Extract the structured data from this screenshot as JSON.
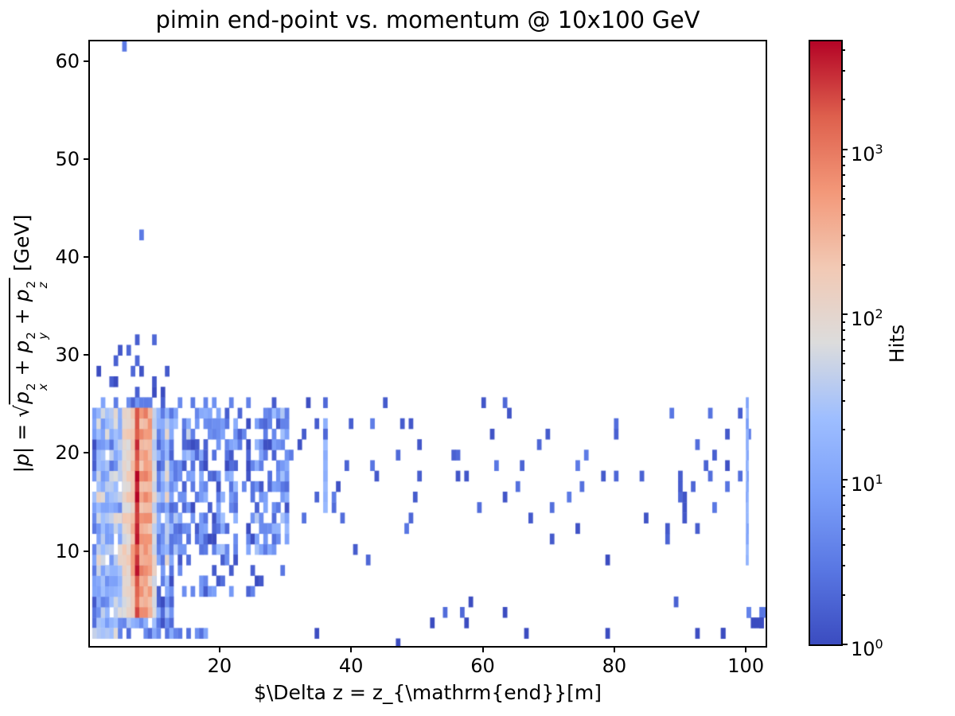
{
  "chart_data": {
    "type": "heatmap",
    "title": "pimin end-point vs. momentum @ 10x100 GeV",
    "xlabel": "$\\Delta z = z_{\\mathrm{end}}[m]",
    "ylabel": {
      "lhs_open": "|",
      "lhs_var": "p",
      "lhs_close": "| = ",
      "sqrt": "√",
      "terms": [
        {
          "base": "p",
          "sup": "2",
          "sub": "x"
        },
        {
          "base": "p",
          "sup": "2",
          "sub": "y"
        },
        {
          "base": "p",
          "sup": "2",
          "sub": "z"
        }
      ],
      "joiner": " + ",
      "suffix": " [GeV]"
    },
    "colorbar": {
      "label": "Hits",
      "base": "10",
      "tick_exponents": [
        0,
        1,
        2,
        3
      ]
    },
    "scale": "log",
    "vmin": 1,
    "vmax": 4500,
    "xlim": [
      0.3,
      103
    ],
    "ylim": [
      0.3,
      62
    ],
    "xticks": [
      20,
      40,
      60,
      80,
      100
    ],
    "yticks": [
      10,
      20,
      30,
      40,
      50,
      60
    ],
    "grid": false,
    "bin_w": 0.65,
    "bin_h": 1.07,
    "colormap": "coolwarm",
    "colormap_stops": [
      [
        0.0,
        "#3b4cc0"
      ],
      [
        0.125,
        "#5977e3"
      ],
      [
        0.25,
        "#7b9ff9"
      ],
      [
        0.375,
        "#9ebeff"
      ],
      [
        0.5,
        "#dcdcdc"
      ],
      [
        0.625,
        "#f2c9b4"
      ],
      [
        0.75,
        "#f39879"
      ],
      [
        0.875,
        "#de604d"
      ],
      [
        1.0,
        "#b40426"
      ]
    ],
    "axis_color": "#000000",
    "seed": 20,
    "regions": [
      {
        "name": "core-left",
        "x0": 0.3,
        "x1": 13,
        "y0": 1.6,
        "y1": 24.6,
        "fill": 0.94,
        "lmin": 0.5,
        "lmax": 1.6,
        "colvar": 0.45,
        "rowvar": 0.3
      },
      {
        "name": "core-top-fade",
        "x0": 0.3,
        "x1": 12,
        "y0": 24.6,
        "y1": 25.6,
        "fill": 0.45,
        "lmin": 0.2,
        "lmax": 1.0
      },
      {
        "name": "mid-band-a",
        "x0": 13,
        "x1": 22.4,
        "y0": 8.6,
        "y1": 24.6,
        "fill": 0.62,
        "lmin": 0.15,
        "lmax": 1.3,
        "colvar": 0.3,
        "rowvar": 0.25
      },
      {
        "name": "mid-band-gap",
        "x0": 22.4,
        "x1": 23.6,
        "y0": 8.6,
        "y1": 24.6,
        "fill": 0.1,
        "lmin": 0,
        "lmax": 0.7
      },
      {
        "name": "mid-band-b",
        "x0": 23.6,
        "x1": 30,
        "y0": 8.6,
        "y1": 24.6,
        "fill": 0.62,
        "lmin": 0.15,
        "lmax": 1.3,
        "colvar": 0.3,
        "rowvar": 0.25
      },
      {
        "name": "mid-top-fade",
        "x0": 13,
        "x1": 30,
        "y0": 24.6,
        "y1": 25.3,
        "fill": 0.35,
        "lmin": 0.1,
        "lmax": 0.9
      },
      {
        "name": "low-mid",
        "x0": 13,
        "x1": 22,
        "y0": 4.3,
        "y1": 8.6,
        "fill": 0.3,
        "lmin": 0.1,
        "lmax": 0.95
      },
      {
        "name": "low-mid-sparse",
        "x0": 22,
        "x1": 30,
        "y0": 4.3,
        "y1": 8.6,
        "fill": 0.08,
        "lmin": 0,
        "lmax": 0.6
      },
      {
        "name": "sparse-wide",
        "x0": 30,
        "x1": 103,
        "y0": 9.6,
        "y1": 22.6,
        "fill": 0.048,
        "lmin": 0,
        "lmax": 0.55
      },
      {
        "name": "sparse-top",
        "x0": 30,
        "x1": 70,
        "y0": 22.6,
        "y1": 25.3,
        "fill": 0.02,
        "lmin": 0,
        "lmax": 0.4
      },
      {
        "name": "sparse-bottom",
        "x0": 12,
        "x1": 103,
        "y0": 0.8,
        "y1": 4.3,
        "fill": 0.016,
        "lmin": 0,
        "lmax": 0.45
      },
      {
        "name": "sparse-low-wide",
        "x0": 30,
        "x1": 103,
        "y0": 4.3,
        "y1": 9.6,
        "fill": 0.008,
        "lmin": 0,
        "lmax": 0.3
      },
      {
        "name": "upper-sparse",
        "x0": 2.6,
        "x1": 12,
        "y0": 25.6,
        "y1": 31.2,
        "fill": 0.13,
        "lmin": 0,
        "lmax": 0.5
      },
      {
        "name": "bottom-row-hot",
        "x0": 0.3,
        "x1": 4.2,
        "y0": 0.3,
        "y1": 1.6,
        "fill": 0.95,
        "lmin": 1.2,
        "lmax": 2.3,
        "colvar": 0.3
      },
      {
        "name": "bottom-row",
        "x0": 4.2,
        "x1": 18,
        "y0": 0.3,
        "y1": 1.6,
        "fill": 0.5,
        "lmin": 0.3,
        "lmax": 1.3
      },
      {
        "name": "streak-36",
        "x0": 35.4,
        "x1": 36.4,
        "y0": 13.4,
        "y1": 22.6,
        "fill": 0.9,
        "lmin": 0.9,
        "lmax": 1.5
      },
      {
        "name": "line-100",
        "x0": 99.95,
        "x1": 100.35,
        "y0": 7.6,
        "y1": 25.2,
        "fill": 0.95,
        "lmin": 0.85,
        "lmax": 1.4,
        "bw": 0.2
      },
      {
        "name": "bottom-right",
        "x0": 99.8,
        "x1": 103,
        "y0": 1.4,
        "y1": 4.3,
        "fill": 0.28,
        "lmin": 0,
        "lmax": 0.7
      },
      {
        "name": "right-mid-extra",
        "x0": 88,
        "x1": 99,
        "y0": 13,
        "y1": 24,
        "fill": 0.05,
        "lmin": 0,
        "lmax": 0.5
      }
    ],
    "stripes": [
      {
        "name": "pale-left",
        "x0": 5.1,
        "x1": 5.9,
        "y0": 2.7,
        "y1": 24.1,
        "lmin": 1.8,
        "lmax": 2.2,
        "rowvar": 0.2
      },
      {
        "name": "orange-left",
        "x0": 5.9,
        "x1": 6.9,
        "y0": 2.7,
        "y1": 24.1,
        "lmin": 2.15,
        "lmax": 2.6,
        "rowvar": 0.2
      },
      {
        "name": "red-core",
        "x0": 6.9,
        "x1": 7.8,
        "y0": 2.7,
        "y1": 23.8,
        "lmin": 3.05,
        "lmax": 3.65,
        "rowvar": 0.15
      },
      {
        "name": "orange-right",
        "x0": 7.8,
        "x1": 9.3,
        "y0": 2.7,
        "y1": 23.8,
        "lmin": 2.35,
        "lmax": 2.9,
        "rowvar": 0.2
      },
      {
        "name": "fade-right",
        "x0": 9.3,
        "x1": 10.3,
        "y0": 3.7,
        "y1": 23,
        "fill": 0.9,
        "lmin": 1.55,
        "lmax": 2.05,
        "rowvar": 0.2
      }
    ],
    "outliers": [
      {
        "x": 5.4,
        "y": 61.4,
        "c": 3
      },
      {
        "x": 7.8,
        "y": 42.8,
        "c": 3
      },
      {
        "x": 5.9,
        "y": 30.8,
        "c": 2
      },
      {
        "x": 7.3,
        "y": 29.4,
        "c": 2
      },
      {
        "x": 1.7,
        "y": 28.2,
        "c": 1
      },
      {
        "x": 6.6,
        "y": 27.9,
        "c": 2
      },
      {
        "x": 4.1,
        "y": 26.9,
        "c": 1
      },
      {
        "x": 9.8,
        "y": 26.4,
        "c": 1
      },
      {
        "x": 11.6,
        "y": 26.1,
        "c": 1
      },
      {
        "x": 36.0,
        "y": 24.8,
        "c": 2
      },
      {
        "x": 63.4,
        "y": 24.7,
        "c": 2
      },
      {
        "x": 100.4,
        "y": 3.8,
        "c": 4
      },
      {
        "x": 100.9,
        "y": 3.2,
        "c": 1
      },
      {
        "x": 101.5,
        "y": 3.2,
        "c": 1
      },
      {
        "x": 102.1,
        "y": 3.0,
        "c": 1
      },
      {
        "x": 102.6,
        "y": 2.6,
        "c": 1
      },
      {
        "x": 96.3,
        "y": 2.0,
        "c": 1
      },
      {
        "x": 96.6,
        "y": 1.2,
        "c": 1
      },
      {
        "x": 46.9,
        "y": 0.9,
        "c": 1
      },
      {
        "x": 52.6,
        "y": 3.0,
        "c": 1
      },
      {
        "x": 56.9,
        "y": 3.4,
        "c": 2
      },
      {
        "x": 57.2,
        "y": 2.2,
        "c": 1
      },
      {
        "x": 66.9,
        "y": 1.7,
        "c": 1
      },
      {
        "x": 79.3,
        "y": 1.5,
        "c": 1
      },
      {
        "x": 63.2,
        "y": 4.0,
        "c": 1
      },
      {
        "x": 48.8,
        "y": 13.0,
        "c": 2
      },
      {
        "x": 35.9,
        "y": 21.5,
        "c": 2
      }
    ]
  }
}
